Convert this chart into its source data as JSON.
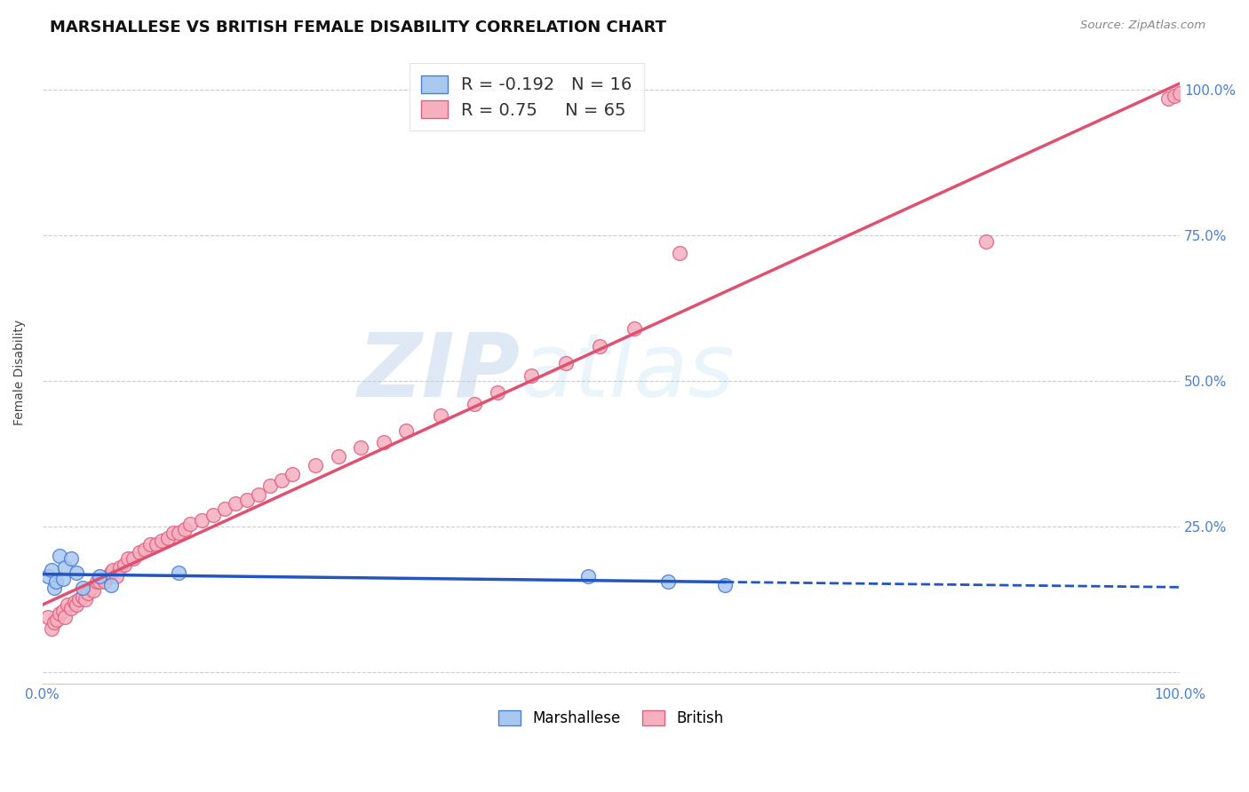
{
  "title": "MARSHALLESE VS BRITISH FEMALE DISABILITY CORRELATION CHART",
  "source": "Source: ZipAtlas.com",
  "ylabel": "Female Disability",
  "background_color": "#ffffff",
  "marshallese_color": "#a8c8f0",
  "british_color": "#f5b0c0",
  "marshallese_edge_color": "#4a7fd4",
  "british_edge_color": "#e06080",
  "marshallese_line_color": "#2255c0",
  "british_line_color": "#e05070",
  "R_marshallese": -0.192,
  "N_marshallese": 16,
  "R_british": 0.75,
  "N_british": 65,
  "marshallese_x": [
    0.5,
    0.8,
    1.0,
    1.2,
    1.5,
    1.8,
    2.0,
    2.5,
    3.0,
    3.5,
    5.0,
    6.0,
    12.0,
    48.0,
    55.0,
    60.0
  ],
  "marshallese_y": [
    16.5,
    17.5,
    14.5,
    15.5,
    20.0,
    16.0,
    18.0,
    19.5,
    17.0,
    14.5,
    16.5,
    15.0,
    17.0,
    16.5,
    15.5,
    15.0
  ],
  "british_x": [
    0.5,
    0.8,
    1.0,
    1.3,
    1.5,
    1.8,
    2.0,
    2.2,
    2.5,
    2.8,
    3.0,
    3.2,
    3.5,
    3.8,
    4.0,
    4.3,
    4.5,
    4.8,
    5.0,
    5.3,
    5.5,
    5.8,
    6.0,
    6.2,
    6.5,
    6.8,
    7.2,
    7.5,
    8.0,
    8.5,
    9.0,
    9.5,
    10.0,
    10.5,
    11.0,
    11.5,
    12.0,
    12.5,
    13.0,
    14.0,
    15.0,
    16.0,
    17.0,
    18.0,
    19.0,
    20.0,
    21.0,
    22.0,
    24.0,
    26.0,
    28.0,
    30.0,
    32.0,
    35.0,
    38.0,
    40.0,
    43.0,
    46.0,
    49.0,
    52.0,
    56.0,
    83.0,
    99.0,
    99.5,
    100.0
  ],
  "british_y": [
    9.5,
    7.5,
    8.5,
    9.0,
    10.0,
    10.5,
    9.5,
    11.5,
    11.0,
    12.0,
    11.5,
    12.5,
    13.0,
    12.5,
    13.5,
    14.5,
    14.0,
    15.5,
    15.5,
    16.0,
    15.5,
    16.5,
    17.0,
    17.5,
    16.5,
    18.0,
    18.5,
    19.5,
    19.5,
    20.5,
    21.0,
    22.0,
    22.0,
    22.5,
    23.0,
    24.0,
    24.0,
    24.5,
    25.5,
    26.0,
    27.0,
    28.0,
    29.0,
    29.5,
    30.5,
    32.0,
    33.0,
    34.0,
    35.5,
    37.0,
    38.5,
    39.5,
    41.5,
    44.0,
    46.0,
    48.0,
    51.0,
    53.0,
    56.0,
    59.0,
    72.0,
    74.0,
    98.5,
    99.0,
    99.5
  ],
  "xlim": [
    0.0,
    100.0
  ],
  "ylim": [
    -2.0,
    105.0
  ],
  "yticks": [
    0.0,
    25.0,
    50.0,
    75.0,
    100.0
  ],
  "right_ytick_labels": [
    "",
    "25.0%",
    "50.0%",
    "75.0%",
    "100.0%"
  ],
  "xtick_positions": [
    0.0,
    20.0,
    40.0,
    60.0,
    80.0,
    100.0
  ],
  "xtick_labels": [
    "0.0%",
    "",
    "",
    "",
    "",
    "100.0%"
  ],
  "grid_color": "#cccccc",
  "tick_color": "#4a7fd4",
  "title_fontsize": 13,
  "label_fontsize": 10,
  "tick_fontsize": 11,
  "legend_fontsize": 14,
  "legend_R_color": "#4a7fd4",
  "legend_N_color": "#4a7fd4"
}
